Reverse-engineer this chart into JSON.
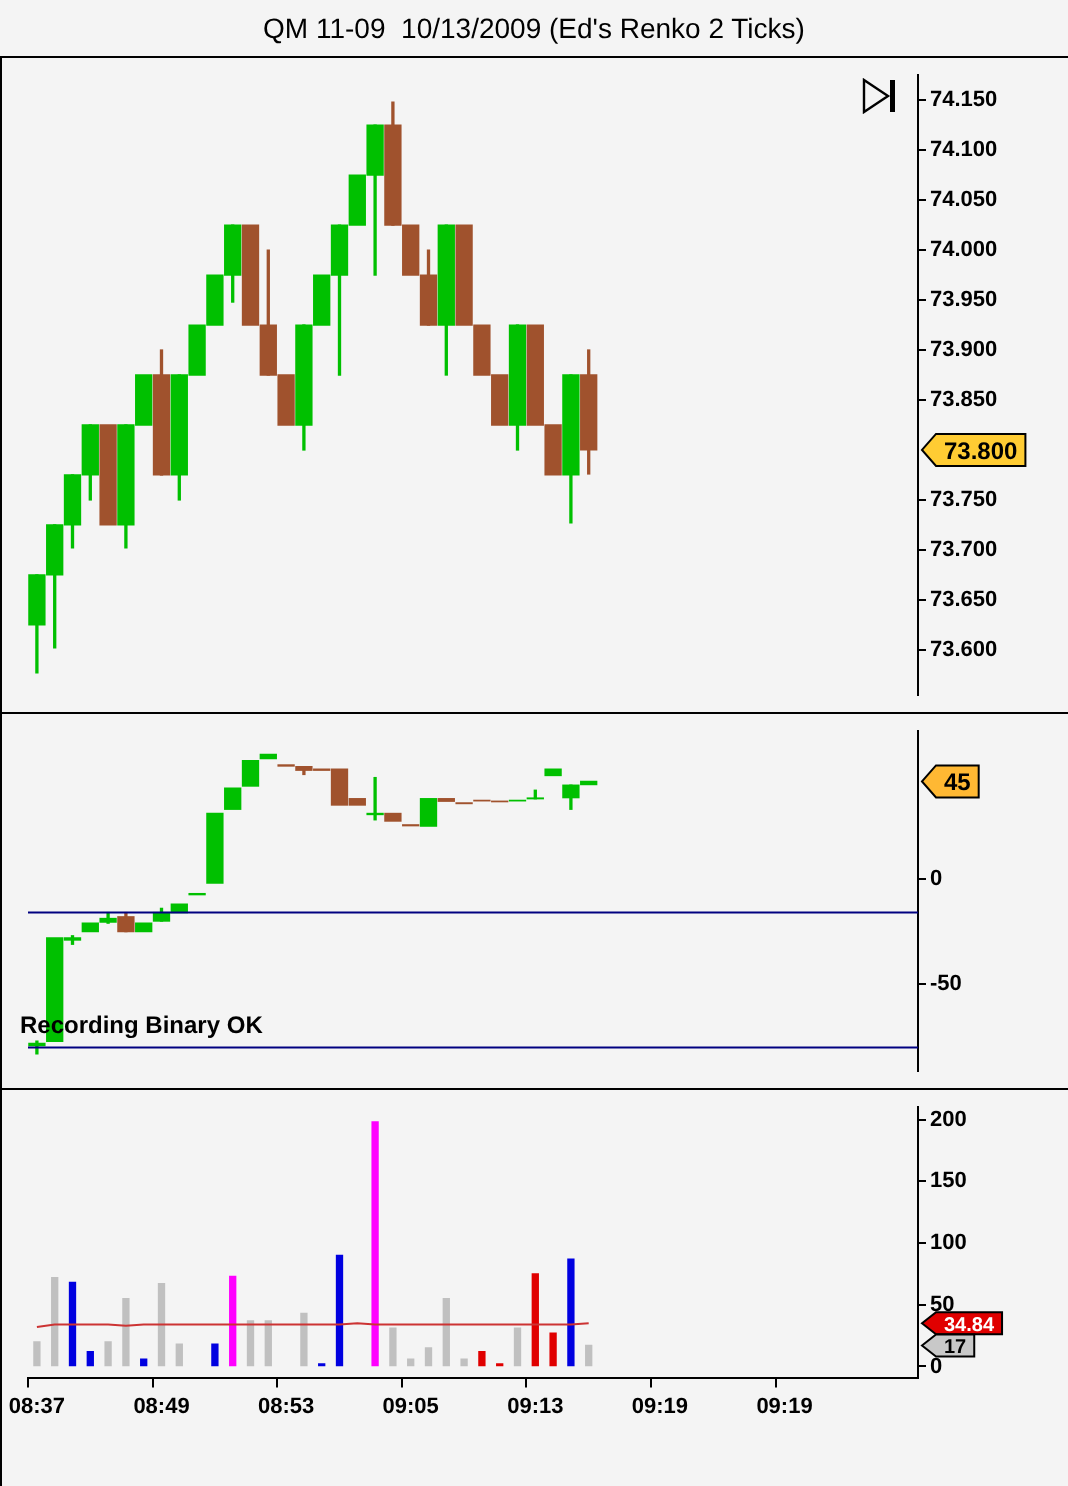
{
  "chart_data": [
    {
      "type": "candlestick",
      "title": "QM 11-09  10/13/2009 (Ed's Renko 2 Ticks)",
      "tick_labels": "y",
      "categories": [
        null,
        null,
        null,
        null,
        null,
        null,
        null,
        null,
        null,
        null,
        null,
        null,
        null,
        null,
        null,
        null,
        null,
        null,
        null,
        null,
        null,
        null,
        null,
        null,
        null,
        null,
        null,
        null,
        null,
        null,
        null,
        null,
        null,
        null,
        null,
        null,
        null,
        null,
        null,
        null,
        null,
        null,
        null,
        null,
        null,
        null,
        null,
        null,
        null,
        null
      ],
      "ohlc": [
        [
          73.625,
          73.675,
          73.577,
          73.675
        ],
        [
          73.675,
          73.725,
          73.602,
          73.725
        ],
        [
          73.725,
          73.775,
          73.702,
          73.775
        ],
        [
          73.775,
          73.825,
          73.75,
          73.825
        ],
        [
          73.825,
          73.825,
          73.725,
          73.725
        ],
        [
          73.725,
          73.825,
          73.702,
          73.825
        ],
        [
          73.825,
          73.875,
          73.825,
          73.875
        ],
        [
          73.875,
          73.9,
          73.775,
          73.775
        ],
        [
          73.775,
          73.875,
          73.75,
          73.875
        ],
        [
          73.875,
          73.925,
          73.875,
          73.925
        ],
        [
          73.925,
          73.975,
          73.925,
          73.975
        ],
        [
          73.975,
          74.025,
          73.948,
          74.025
        ],
        [
          74.025,
          74.025,
          73.925,
          73.925
        ],
        [
          73.925,
          74.0,
          73.875,
          73.875
        ],
        [
          73.875,
          73.875,
          73.825,
          73.825
        ],
        [
          73.825,
          73.925,
          73.8,
          73.925
        ],
        [
          73.925,
          73.975,
          73.925,
          73.975
        ],
        [
          73.975,
          74.025,
          73.875,
          74.025
        ],
        [
          74.025,
          74.075,
          74.025,
          74.075
        ],
        [
          74.075,
          74.125,
          73.975,
          74.125
        ],
        [
          74.125,
          74.148,
          74.025,
          74.025
        ],
        [
          74.025,
          74.025,
          73.975,
          73.975
        ],
        [
          73.975,
          74.0,
          73.925,
          73.925
        ],
        [
          73.925,
          74.025,
          73.875,
          74.025
        ],
        [
          74.025,
          74.025,
          73.925,
          73.925
        ],
        [
          73.925,
          73.925,
          73.875,
          73.875
        ],
        [
          73.875,
          73.875,
          73.825,
          73.825
        ],
        [
          73.825,
          73.925,
          73.8,
          73.925
        ],
        [
          73.925,
          73.925,
          73.825,
          73.825
        ],
        [
          73.825,
          73.825,
          73.775,
          73.775
        ],
        [
          73.775,
          73.875,
          73.727,
          73.875
        ],
        [
          73.875,
          73.9,
          73.776,
          73.8
        ],
        null,
        null,
        null,
        null,
        null,
        null,
        null,
        null,
        null,
        null,
        null,
        null,
        null,
        null,
        null,
        null,
        null,
        null
      ],
      "colors": [
        "#00c000",
        "#00c000",
        "#00c000",
        "#00c000",
        "#a0522d",
        "#00c000",
        "#00c000",
        "#a0522d",
        "#00c000",
        "#00c000",
        "#00c000",
        "#00c000",
        "#a0522d",
        "#a0522d",
        "#a0522d",
        "#00c000",
        "#00c000",
        "#00c000",
        "#00c000",
        "#00c000",
        "#a0522d",
        "#a0522d",
        "#a0522d",
        "#00c000",
        "#a0522d",
        "#a0522d",
        "#a0522d",
        "#00c000",
        "#a0522d",
        "#a0522d",
        "#00c000",
        "#a0522d",
        null,
        null,
        null,
        null,
        null,
        null,
        null,
        null,
        null,
        null,
        null,
        null,
        null,
        null,
        null,
        null,
        null,
        null
      ],
      "ylim": [
        73.555,
        74.175
      ],
      "yticks": [
        {
          "value": 73.6,
          "label": "73.600"
        },
        {
          "value": 73.65,
          "label": "73.650"
        },
        {
          "value": 73.7,
          "label": "73.700"
        },
        {
          "value": 73.75,
          "label": "73.750"
        },
        {
          "value": 73.85,
          "label": "73.850"
        },
        {
          "value": 73.9,
          "label": "73.900"
        },
        {
          "value": 73.95,
          "label": "73.950"
        },
        {
          "value": 74.0,
          "label": "74.000"
        },
        {
          "value": 74.05,
          "label": "74.050"
        },
        {
          "value": 74.1,
          "label": "74.100"
        },
        {
          "value": 74.15,
          "label": "74.150"
        }
      ],
      "annotations": [
        "73.800"
      ]
    },
    {
      "type": "candlestick",
      "tick_labels": "y",
      "categories": [
        null,
        null,
        null,
        null,
        null,
        null,
        null,
        null,
        null,
        null,
        null,
        null,
        null,
        null,
        null,
        null,
        null,
        null,
        null,
        null,
        null,
        null,
        null,
        null,
        null,
        null,
        null,
        null,
        null,
        null,
        null,
        null,
        null,
        null,
        null,
        null,
        null,
        null,
        null,
        null,
        null,
        null,
        null,
        null,
        null,
        null,
        null,
        null,
        null,
        null
      ],
      "ohlc": [
        [
          -79,
          -77,
          -83,
          -78
        ],
        [
          -77,
          -28,
          -77,
          -28
        ],
        [
          -29,
          -27,
          -31,
          -28
        ],
        [
          -25,
          -21,
          -25,
          -21
        ],
        [
          -20.5,
          -16,
          -21,
          -18.8
        ],
        [
          -18,
          -16,
          -25,
          -25
        ],
        [
          -25,
          -21,
          -25,
          -21
        ],
        [
          -20,
          -14,
          -20,
          -16
        ],
        [
          -16,
          -12,
          -16,
          -12
        ],
        [
          -7.5,
          -7,
          -7.5,
          -7
        ],
        [
          -2,
          31,
          -2,
          31
        ],
        [
          33,
          43,
          33,
          43
        ],
        [
          44,
          56,
          44,
          56
        ],
        [
          57,
          59,
          57,
          59
        ],
        [
          54,
          54,
          53.5,
          53.5
        ],
        [
          53.2,
          53.2,
          49.5,
          51.5
        ],
        [
          52,
          52,
          51.5,
          51.5
        ],
        [
          52,
          52,
          35,
          35
        ],
        [
          38,
          38,
          35,
          35
        ],
        [
          30.5,
          48,
          28,
          31
        ],
        [
          31,
          31,
          27.4,
          27.4
        ],
        [
          25.6,
          25.6,
          25.2,
          25.2
        ],
        [
          25,
          38,
          25,
          38
        ],
        [
          38,
          38,
          36.8,
          36.8
        ],
        [
          36,
          36,
          35.7,
          35.7
        ],
        [
          37.2,
          37.2,
          37,
          37
        ],
        [
          36.8,
          36.8,
          36.6,
          36.6
        ],
        [
          37,
          37.2,
          37,
          37.2
        ],
        [
          38,
          42,
          38,
          38.3
        ],
        [
          49,
          52,
          49,
          52
        ],
        [
          38.5,
          44.4,
          33,
          44.4
        ],
        [
          44.7,
          46.2,
          44.7,
          46.2
        ],
        null,
        null,
        null,
        null,
        null,
        null,
        null,
        null,
        null,
        null,
        null,
        null,
        null,
        null,
        null,
        null,
        null,
        null
      ],
      "colors": [
        "#00c000",
        "#00c000",
        "#00c000",
        "#00c000",
        "#00c000",
        "#a0522d",
        "#00c000",
        "#00c000",
        "#00c000",
        "#00c000",
        "#00c000",
        "#00c000",
        "#00c000",
        "#00c000",
        "#a0522d",
        "#a0522d",
        "#a0522d",
        "#a0522d",
        "#a0522d",
        "#00c000",
        "#a0522d",
        "#a0522d",
        "#00c000",
        "#a0522d",
        "#a0522d",
        "#a0522d",
        "#a0522d",
        "#00c000",
        "#00c000",
        "#00c000",
        "#00c000",
        "#00c000",
        null,
        null,
        null,
        null,
        null,
        null,
        null,
        null,
        null,
        null,
        null,
        null,
        null,
        null,
        null,
        null,
        null,
        null
      ],
      "ylim": [
        -91,
        70
      ],
      "yticks": [
        -50,
        0
      ],
      "ref_lines": [
        {
          "axis": "y",
          "value": -16,
          "color": "#000080"
        },
        {
          "axis": "y",
          "value": -80,
          "color": "#000080"
        }
      ],
      "annotations": [
        "45",
        "Recording Binary OK"
      ]
    },
    {
      "type": "bar",
      "categories": [
        "08:37",
        null,
        null,
        null,
        null,
        null,
        null,
        "08:49",
        null,
        null,
        null,
        null,
        null,
        null,
        "08:53",
        null,
        null,
        null,
        null,
        null,
        null,
        "09:05",
        null,
        null,
        null,
        null,
        null,
        null,
        "09:13",
        null,
        null,
        null,
        null,
        null,
        null,
        "09:19",
        null,
        null,
        null,
        null,
        null,
        null,
        "09:19",
        null,
        null,
        null,
        null,
        null,
        null,
        null
      ],
      "series": [
        {
          "type": "bar",
          "values": [
            20,
            72,
            68,
            12,
            20,
            55,
            6,
            67,
            18,
            null,
            18,
            73,
            37,
            37,
            null,
            43,
            2,
            90,
            null,
            198,
            31,
            6,
            15,
            55,
            6,
            12,
            2,
            31,
            75,
            27,
            87,
            17,
            null,
            null,
            null,
            null,
            null,
            null,
            null,
            null,
            null,
            null,
            null,
            null,
            null,
            null,
            null,
            null,
            null,
            null
          ],
          "colors": [
            "#c0c0c0",
            "#c0c0c0",
            "#0000e0",
            "#0000e0",
            "#c0c0c0",
            "#c0c0c0",
            "#0000e0",
            "#c0c0c0",
            "#c0c0c0",
            null,
            "#0000e0",
            "#ff00ff",
            "#c0c0c0",
            "#c0c0c0",
            null,
            "#c0c0c0",
            "#0000e0",
            "#0000e0",
            null,
            "#ff00ff",
            "#c0c0c0",
            "#c0c0c0",
            "#c0c0c0",
            "#c0c0c0",
            "#c0c0c0",
            "#e00000",
            "#e00000",
            "#c0c0c0",
            "#e00000",
            "#e00000",
            "#0000e0",
            "#c0c0c0",
            null,
            null,
            null,
            null,
            null,
            null,
            null,
            null,
            null,
            null,
            null,
            null,
            null,
            null,
            null,
            null,
            null,
            null
          ]
        },
        {
          "type": "line",
          "color": "#cc3333",
          "values": [
            32,
            34,
            34,
            34,
            34,
            33,
            34,
            34,
            34,
            34,
            34,
            34,
            34,
            34,
            34,
            34,
            34,
            34,
            35,
            34,
            34,
            34,
            34,
            34,
            34,
            34,
            34,
            34,
            34,
            34,
            34,
            35,
            null,
            null,
            null,
            null,
            null,
            null,
            null,
            null,
            null,
            null,
            null,
            null,
            null,
            null,
            null,
            null,
            null,
            null
          ]
        }
      ],
      "ylim": [
        -9,
        210
      ],
      "yticks": [
        0,
        50,
        100,
        150,
        200
      ],
      "annotations": [
        "34.84",
        "17"
      ]
    }
  ]
}
